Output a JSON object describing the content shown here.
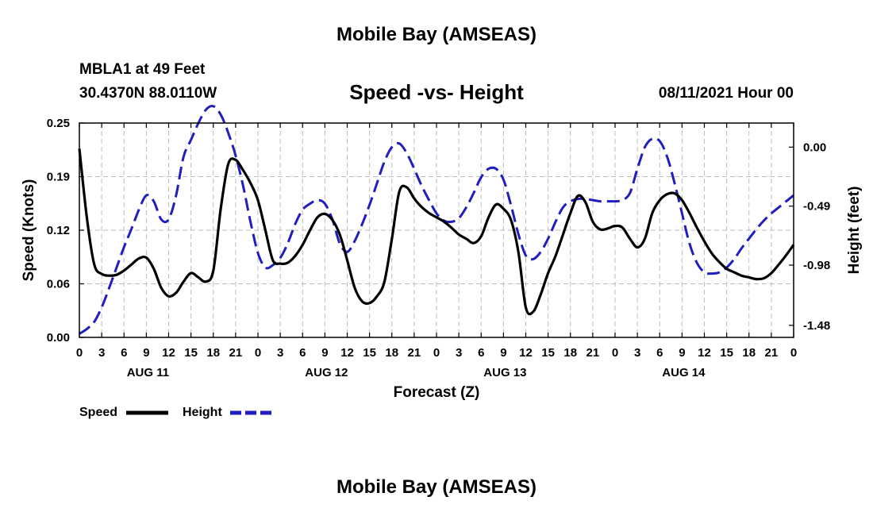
{
  "title_top": "Mobile Bay (AMSEAS)",
  "title_bottom": "Mobile Bay (AMSEAS)",
  "station": {
    "name": "MBLA1 at 49 Feet",
    "coords": "30.4370N  88.0110W"
  },
  "run_time": "08/11/2021 Hour 00",
  "colors": {
    "speed": "#000000",
    "height": "#1f1fbf",
    "grid": "#bdbdbd"
  },
  "chart_data": {
    "type": "line",
    "title": "Speed -vs- Height",
    "xlabel": "Forecast (Z)",
    "ylabel": "Speed (Knots)",
    "y2label": "Height (feet)",
    "x_range_hours": [
      0,
      96
    ],
    "x_tick_step_hours": 3,
    "x_tick_labels": [
      "0",
      "3",
      "6",
      "9",
      "12",
      "15",
      "18",
      "21",
      "0",
      "3",
      "6",
      "9",
      "12",
      "15",
      "18",
      "21",
      "0",
      "3",
      "6",
      "9",
      "12",
      "15",
      "18",
      "21",
      "0",
      "3",
      "6",
      "9",
      "12",
      "15",
      "18",
      "21",
      "0"
    ],
    "date_labels": [
      {
        "label": "AUG 11",
        "hour": 9
      },
      {
        "label": "AUG 12",
        "hour": 33
      },
      {
        "label": "AUG 13",
        "hour": 57
      },
      {
        "label": "AUG 14",
        "hour": 81
      }
    ],
    "ylim": [
      0.0,
      0.25
    ],
    "y_ticks": [
      "0.00",
      "0.06",
      "0.12",
      "0.19",
      "0.25"
    ],
    "y_tick_values": [
      0.0,
      0.0625,
      0.125,
      0.1875,
      0.25
    ],
    "y2lim": [
      -1.58,
      0.2
    ],
    "y2_ticks": [
      "-1.48",
      "-0.98",
      "-0.49",
      "0.00"
    ],
    "y2_tick_values": [
      -1.48,
      -0.98,
      -0.49,
      0.0
    ],
    "grid": true,
    "series": [
      {
        "name": "Speed",
        "axis": "left",
        "style": "solid",
        "x": [
          0,
          1,
          2,
          3,
          4,
          5,
          6,
          7,
          8,
          9,
          10,
          11,
          12,
          13,
          14,
          15,
          16,
          17,
          18,
          19,
          20,
          21,
          22,
          23,
          24,
          25,
          26,
          27,
          28,
          29,
          30,
          31,
          32,
          33,
          34,
          35,
          36,
          37,
          38,
          39,
          40,
          41,
          42,
          43,
          44,
          45,
          46,
          47,
          48,
          49,
          50,
          51,
          52,
          53,
          54,
          55,
          56,
          57,
          58,
          59,
          60,
          61,
          62,
          63,
          64,
          65,
          66,
          67,
          68,
          69,
          70,
          71,
          72,
          73,
          74,
          75,
          76,
          77,
          78,
          79,
          80,
          81,
          82,
          83,
          84,
          85,
          86,
          87,
          88,
          89,
          90,
          91,
          92,
          93,
          94,
          95,
          96
        ],
        "values": [
          0.22,
          0.14,
          0.085,
          0.074,
          0.072,
          0.073,
          0.078,
          0.085,
          0.092,
          0.093,
          0.08,
          0.058,
          0.048,
          0.052,
          0.065,
          0.075,
          0.07,
          0.065,
          0.078,
          0.15,
          0.202,
          0.207,
          0.195,
          0.18,
          0.16,
          0.125,
          0.09,
          0.086,
          0.087,
          0.095,
          0.108,
          0.125,
          0.14,
          0.144,
          0.137,
          0.12,
          0.09,
          0.058,
          0.042,
          0.04,
          0.048,
          0.065,
          0.115,
          0.17,
          0.175,
          0.162,
          0.152,
          0.145,
          0.14,
          0.135,
          0.128,
          0.12,
          0.115,
          0.11,
          0.118,
          0.14,
          0.155,
          0.15,
          0.137,
          0.1,
          0.035,
          0.03,
          0.05,
          0.075,
          0.095,
          0.12,
          0.145,
          0.165,
          0.158,
          0.135,
          0.126,
          0.127,
          0.13,
          0.128,
          0.115,
          0.105,
          0.115,
          0.145,
          0.16,
          0.167,
          0.168,
          0.16,
          0.145,
          0.128,
          0.112,
          0.098,
          0.088,
          0.08,
          0.076,
          0.072,
          0.07,
          0.068,
          0.069,
          0.075,
          0.085,
          0.096,
          0.108
        ]
      },
      {
        "name": "Height",
        "axis": "right",
        "style": "dashed",
        "x": [
          0,
          1,
          2,
          3,
          4,
          5,
          6,
          7,
          8,
          9,
          10,
          11,
          12,
          13,
          14,
          15,
          16,
          17,
          18,
          19,
          20,
          21,
          22,
          23,
          24,
          25,
          26,
          27,
          28,
          29,
          30,
          31,
          32,
          33,
          34,
          35,
          36,
          37,
          38,
          39,
          40,
          41,
          42,
          43,
          44,
          45,
          46,
          47,
          48,
          49,
          50,
          51,
          52,
          53,
          54,
          55,
          56,
          57,
          58,
          59,
          60,
          61,
          62,
          63,
          64,
          65,
          66,
          67,
          68,
          69,
          70,
          71,
          72,
          73,
          74,
          75,
          76,
          77,
          78,
          79,
          80,
          81,
          82,
          83,
          84,
          85,
          86,
          87,
          88,
          89,
          90,
          91,
          92,
          93,
          94,
          95,
          96
        ],
        "values": [
          -1.55,
          -1.51,
          -1.45,
          -1.33,
          -1.17,
          -1.0,
          -0.83,
          -0.68,
          -0.52,
          -0.4,
          -0.45,
          -0.6,
          -0.6,
          -0.4,
          -0.08,
          0.06,
          0.2,
          0.31,
          0.34,
          0.27,
          0.12,
          -0.07,
          -0.32,
          -0.62,
          -0.88,
          -1.0,
          -0.98,
          -0.92,
          -0.8,
          -0.64,
          -0.52,
          -0.47,
          -0.44,
          -0.47,
          -0.6,
          -0.8,
          -0.87,
          -0.78,
          -0.64,
          -0.48,
          -0.3,
          -0.12,
          0.0,
          0.03,
          -0.05,
          -0.18,
          -0.32,
          -0.44,
          -0.55,
          -0.61,
          -0.62,
          -0.59,
          -0.5,
          -0.38,
          -0.25,
          -0.18,
          -0.18,
          -0.27,
          -0.48,
          -0.72,
          -0.9,
          -0.93,
          -0.87,
          -0.76,
          -0.62,
          -0.5,
          -0.45,
          -0.43,
          -0.43,
          -0.44,
          -0.45,
          -0.45,
          -0.45,
          -0.44,
          -0.38,
          -0.18,
          0.0,
          0.07,
          0.05,
          -0.08,
          -0.3,
          -0.55,
          -0.8,
          -0.96,
          -1.04,
          -1.05,
          -1.04,
          -1.0,
          -0.93,
          -0.84,
          -0.76,
          -0.68,
          -0.61,
          -0.55,
          -0.5,
          -0.45,
          -0.4
        ]
      }
    ],
    "legend": {
      "position": "bottom-left",
      "entries": [
        "Speed",
        "Height"
      ]
    }
  }
}
